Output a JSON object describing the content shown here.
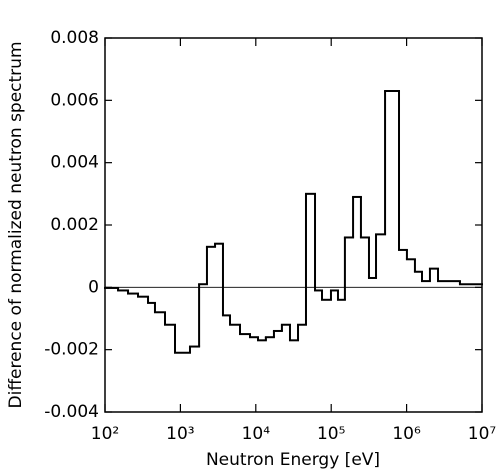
{
  "chart_data": {
    "type": "histogram",
    "xlabel": "Neutron Energy [eV]",
    "ylabel": "Difference of normalized neutron spectrum",
    "xscale": "log",
    "bins": [
      100,
      149,
      202,
      274,
      372,
      460,
      625,
      848,
      1340,
      1770,
      2250,
      2880,
      3670,
      4550,
      6170,
      8380,
      10700,
      13600,
      17400,
      22200,
      28400,
      36300,
      46300,
      61000,
      75500,
      99300,
      123000,
      152000,
      195000,
      248000,
      317000,
      393000,
      518000,
      793000,
      1010000,
      1290000,
      1600000,
      2040000,
      2610000,
      5100000,
      10000000
    ],
    "values": [
      -2e-05,
      -0.0001,
      -0.0002,
      -0.0003,
      -0.0005,
      -0.0008,
      -0.0012,
      -0.0021,
      -0.0019,
      0.0001,
      0.0013,
      0.0014,
      -0.0009,
      -0.0012,
      -0.0015,
      -0.0016,
      -0.0017,
      -0.0016,
      -0.0014,
      -0.0012,
      -0.0017,
      -0.0012,
      0.003,
      -0.0001,
      -0.0004,
      -0.0001,
      -0.0004,
      0.0016,
      0.0029,
      0.0016,
      0.0003,
      0.0017,
      0.0063,
      0.0012,
      0.0009,
      0.0005,
      0.0002,
      0.0006,
      0.0002,
      0.0001
    ],
    "color": "#000000",
    "xlim": [
      100,
      10000000
    ],
    "xticks": [
      {
        "value": 100,
        "label": "10²"
      },
      {
        "value": 1000,
        "label": "10³"
      },
      {
        "value": 10000,
        "label": "10⁴"
      },
      {
        "value": 100000,
        "label": "10⁵"
      },
      {
        "value": 1000000,
        "label": "10⁶"
      },
      {
        "value": 10000000,
        "label": "10⁷"
      }
    ],
    "ylim": [
      -0.004,
      0.008
    ],
    "yticks": [
      -0.004,
      -0.002,
      0,
      0.002,
      0.004,
      0.006,
      0.008
    ],
    "zero_line": true
  }
}
